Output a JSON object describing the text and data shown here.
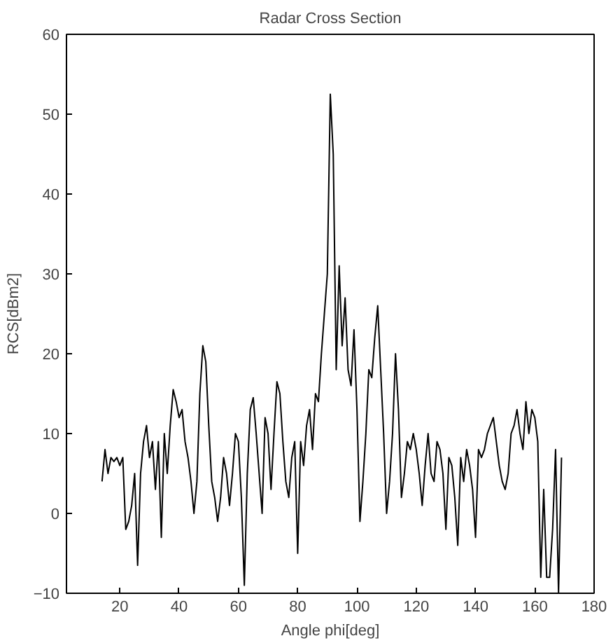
{
  "chart_data": {
    "type": "line",
    "title": "Radar Cross Section",
    "xlabel": "Angle phi[deg]",
    "ylabel": "RCS[dBm2]",
    "xlim": [
      2,
      180
    ],
    "xticks": [
      20,
      40,
      60,
      80,
      100,
      120,
      140,
      160,
      180
    ],
    "ylim": [
      -10,
      60
    ],
    "yticks": [
      -10,
      0,
      10,
      20,
      30,
      40,
      50,
      60
    ],
    "grid": false,
    "series": [
      {
        "color": "#000000",
        "x": [
          14,
          15,
          16,
          17,
          18,
          19,
          20,
          21,
          22,
          23,
          24,
          25,
          26,
          27,
          28,
          29,
          30,
          31,
          32,
          33,
          34,
          35,
          36,
          37,
          38,
          39,
          40,
          41,
          42,
          43,
          44,
          45,
          46,
          47,
          48,
          49,
          50,
          51,
          52,
          53,
          54,
          55,
          56,
          57,
          58,
          59,
          60,
          61,
          62,
          63,
          64,
          65,
          66,
          67,
          68,
          69,
          70,
          71,
          72,
          73,
          74,
          75,
          76,
          77,
          78,
          79,
          80,
          81,
          82,
          83,
          84,
          85,
          86,
          87,
          88,
          89,
          90,
          91,
          92,
          93,
          94,
          95,
          96,
          97,
          98,
          99,
          100,
          101,
          102,
          103,
          104,
          105,
          106,
          107,
          108,
          109,
          110,
          111,
          112,
          113,
          114,
          115,
          116,
          117,
          118,
          119,
          120,
          121,
          122,
          123,
          124,
          125,
          126,
          127,
          128,
          129,
          130,
          131,
          132,
          133,
          134,
          135,
          136,
          137,
          138,
          139,
          140,
          141,
          142,
          143,
          144,
          145,
          146,
          147,
          148,
          149,
          150,
          151,
          152,
          153,
          154,
          155,
          156,
          157,
          158,
          159,
          160,
          161,
          162,
          163,
          164,
          165,
          166,
          167,
          168,
          169
        ],
        "values": [
          4,
          8,
          5,
          7,
          6.5,
          7,
          6,
          7,
          -2,
          -1,
          1,
          5,
          -6.5,
          5,
          9,
          11,
          7,
          9,
          3,
          9,
          -3,
          10,
          5,
          11,
          15.5,
          14,
          12,
          13,
          9,
          7,
          4,
          0,
          4,
          15,
          21,
          19,
          11,
          4,
          2,
          -1,
          2,
          7,
          5,
          1,
          5,
          10,
          9,
          2,
          -9,
          5,
          13,
          14.5,
          10,
          5,
          0,
          12,
          10,
          3,
          10,
          16.5,
          15,
          9,
          4,
          2,
          7,
          9,
          -5,
          9,
          6,
          11,
          13,
          8,
          15,
          14,
          20,
          25,
          30,
          52.5,
          45,
          18,
          31,
          21,
          27,
          18,
          16,
          23,
          13,
          -1,
          4,
          10,
          18,
          17,
          22,
          26,
          18,
          10,
          0,
          4,
          10,
          20,
          13,
          2,
          5,
          9,
          8,
          10,
          8,
          5,
          1,
          6,
          10,
          5,
          4,
          9,
          8,
          5,
          -2,
          7,
          6,
          2,
          -4,
          7,
          4,
          8,
          6,
          3,
          -3,
          8,
          7,
          8,
          10,
          11,
          12,
          9,
          6,
          4,
          3,
          5,
          10,
          11,
          13,
          10,
          8,
          14,
          10,
          13,
          12,
          9,
          -8,
          3,
          -8,
          -8,
          -2,
          8,
          -10,
          7
        ]
      }
    ]
  }
}
